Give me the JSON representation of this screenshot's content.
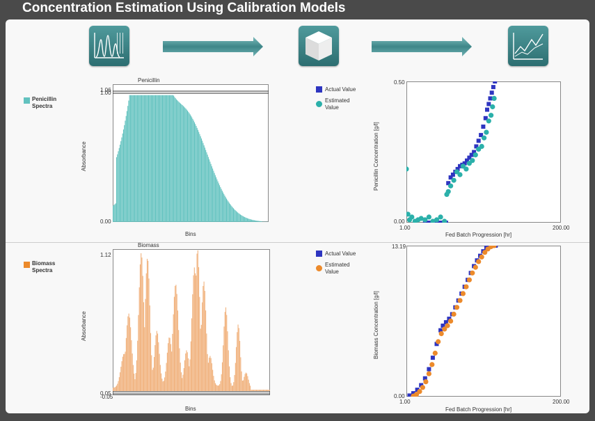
{
  "title": "Concentration Estimation Using Calibration Models",
  "colors": {
    "teal": "#62c2bf",
    "orange": "#f0b07a",
    "navy": "#2e35c0",
    "teal_dot": "#2bb0aa",
    "orange_dot": "#ec8a2b"
  },
  "icons": [
    "spectra-icon",
    "cube-icon",
    "trend-chart-icon"
  ],
  "chart_data": [
    {
      "type": "bar",
      "title": "Penicillin",
      "ylabel": "Absorbance",
      "xlabel": "Bins",
      "yticks": [
        "1.06",
        "1.00",
        "0.00"
      ],
      "ylim": [
        0,
        1.06
      ],
      "legend": "Penicillin Spectra",
      "shape": "smooth-peak",
      "peaks": [
        [
          0.22,
          0.96,
          0.08
        ],
        [
          0.45,
          0.85,
          0.16
        ],
        [
          0.12,
          0.55,
          0.14
        ]
      ]
    },
    {
      "type": "bar",
      "title": "Biomass",
      "ylabel": "Absorbance",
      "xlabel": "Bins",
      "yticks": [
        "1.12",
        "0.05",
        "0.00",
        "-0.05"
      ],
      "ylim": [
        -0.05,
        1.12
      ],
      "legend": "Biomass Spectra",
      "shape": "multi-peak",
      "peaks": [
        [
          0.07,
          0.25,
          0.02
        ],
        [
          0.1,
          0.55,
          0.018
        ],
        [
          0.18,
          1.0,
          0.016
        ],
        [
          0.22,
          0.96,
          0.015
        ],
        [
          0.28,
          0.4,
          0.015
        ],
        [
          0.36,
          0.35,
          0.015
        ],
        [
          0.4,
          0.75,
          0.017
        ],
        [
          0.47,
          0.25,
          0.014
        ],
        [
          0.52,
          0.88,
          0.016
        ],
        [
          0.54,
          1.02,
          0.014
        ],
        [
          0.58,
          0.78,
          0.015
        ],
        [
          0.62,
          0.22,
          0.015
        ],
        [
          0.72,
          0.6,
          0.014
        ],
        [
          0.8,
          0.48,
          0.013
        ],
        [
          0.85,
          0.12,
          0.015
        ]
      ]
    },
    {
      "type": "scatter",
      "xlabel": "Fed Batch Progression [hr]",
      "ylabel": "Penicillin Concentration [g/l]",
      "xticks": [
        "1.00",
        "200.00"
      ],
      "yticks": [
        "0.50",
        "0.00"
      ],
      "xlim": [
        1,
        200
      ],
      "ylim": [
        0,
        0.5
      ],
      "series": [
        {
          "name": "Actual Value",
          "marker": "square",
          "x": [
            25,
            28,
            31,
            34,
            37,
            40,
            43,
            46,
            49,
            52,
            55,
            58,
            61,
            64,
            67,
            70,
            73,
            76,
            79,
            82,
            85,
            88,
            91,
            94,
            97,
            100,
            103,
            105,
            107,
            109,
            111,
            113,
            115
          ],
          "y": [
            0,
            0,
            0,
            0,
            0,
            0,
            0,
            0,
            0,
            0,
            0.14,
            0.16,
            0.17,
            0.18,
            0.19,
            0.2,
            0.205,
            0.21,
            0.22,
            0.23,
            0.24,
            0.25,
            0.27,
            0.29,
            0.31,
            0.34,
            0.37,
            0.4,
            0.42,
            0.44,
            0.46,
            0.48,
            0.5
          ]
        },
        {
          "name": "Estimated Value",
          "marker": "circle",
          "x": [
            1,
            3,
            5,
            8,
            12,
            16,
            20,
            25,
            30,
            35,
            40,
            45,
            50,
            53,
            55,
            58,
            62,
            66,
            70,
            74,
            78,
            82,
            86,
            90,
            94,
            98,
            101,
            104,
            107,
            110,
            112,
            114
          ],
          "y": [
            0.19,
            0.03,
            0.01,
            0.02,
            0.005,
            0.01,
            0.015,
            0.01,
            0.02,
            0.005,
            0.01,
            0.02,
            0.005,
            0.1,
            0.11,
            0.13,
            0.15,
            0.18,
            0.17,
            0.2,
            0.19,
            0.21,
            0.22,
            0.24,
            0.26,
            0.27,
            0.3,
            0.32,
            0.36,
            0.38,
            0.41,
            0.44
          ]
        }
      ]
    },
    {
      "type": "scatter",
      "xlabel": "Fed Batch Progression [hr]",
      "ylabel": "Biomass Concentration [g/l]",
      "xticks": [
        "1.00",
        "200.00"
      ],
      "yticks": [
        "13.19",
        "0.00"
      ],
      "xlim": [
        1,
        200
      ],
      "ylim": [
        0,
        13.19
      ],
      "series": [
        {
          "name": "Actual Value",
          "marker": "square",
          "x": [
            5,
            10,
            15,
            20,
            25,
            30,
            35,
            40,
            45,
            48,
            52,
            56,
            60,
            64,
            68,
            72,
            76,
            80,
            84,
            88,
            92,
            96,
            100,
            104,
            108,
            112,
            116
          ],
          "y": [
            0.1,
            0.3,
            0.6,
            1.0,
            1.6,
            2.4,
            3.4,
            4.6,
            5.8,
            6.2,
            6.5,
            6.8,
            7.2,
            7.8,
            8.4,
            9.0,
            9.6,
            10.2,
            10.8,
            11.4,
            11.9,
            12.3,
            12.7,
            13.0,
            13.19,
            13.19,
            13.19
          ],
          "ofs": -2
        },
        {
          "name": "Estimated Value",
          "marker": "circle",
          "x": [
            10,
            14,
            18,
            22,
            26,
            30,
            34,
            38,
            42,
            46,
            50,
            54,
            58,
            62,
            66,
            70,
            74,
            78,
            82,
            86,
            90,
            94,
            98,
            102,
            106,
            110,
            114
          ],
          "y": [
            0.05,
            0.2,
            0.45,
            0.8,
            1.3,
            2.0,
            2.8,
            3.8,
            4.8,
            5.5,
            5.9,
            6.2,
            6.6,
            7.2,
            7.8,
            8.4,
            9.0,
            9.6,
            10.2,
            10.8,
            11.3,
            11.8,
            12.2,
            12.6,
            12.9,
            13.1,
            13.19
          ]
        }
      ]
    }
  ]
}
